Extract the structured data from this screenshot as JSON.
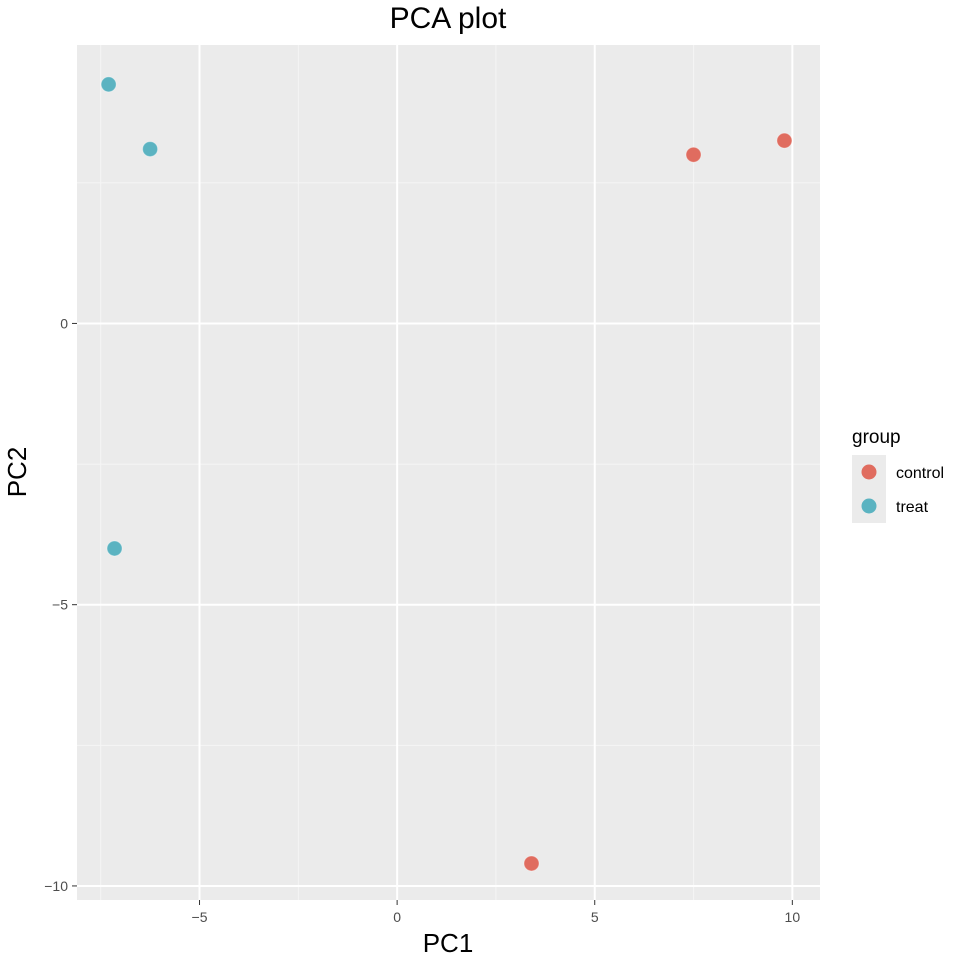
{
  "chart_data": {
    "type": "scatter",
    "title": "PCA plot",
    "xlabel": "PC1",
    "ylabel": "PC2",
    "xlim": [
      -8.1,
      10.7
    ],
    "ylim": [
      -10.25,
      4.95
    ],
    "x_ticks": [
      -5,
      0,
      5,
      10
    ],
    "x_tick_labels": [
      "−5",
      "0",
      "5",
      "10"
    ],
    "y_ticks": [
      -10,
      -5,
      0
    ],
    "y_tick_labels": [
      "−10",
      "−5",
      "0"
    ],
    "grid": true,
    "legend": {
      "title": "group",
      "position": "right",
      "entries": [
        {
          "label": "control",
          "color": "#E06C5F"
        },
        {
          "label": "treat",
          "color": "#5BB3C1"
        }
      ]
    },
    "series": [
      {
        "name": "control",
        "color": "#E06C5F",
        "points": [
          {
            "x": 7.5,
            "y": 3.0
          },
          {
            "x": 9.8,
            "y": 3.25
          },
          {
            "x": 3.4,
            "y": -9.6
          }
        ]
      },
      {
        "name": "treat",
        "color": "#5BB3C1",
        "points": [
          {
            "x": -7.3,
            "y": 4.25
          },
          {
            "x": -6.25,
            "y": 3.1
          },
          {
            "x": -7.15,
            "y": -4.0
          }
        ]
      }
    ]
  }
}
